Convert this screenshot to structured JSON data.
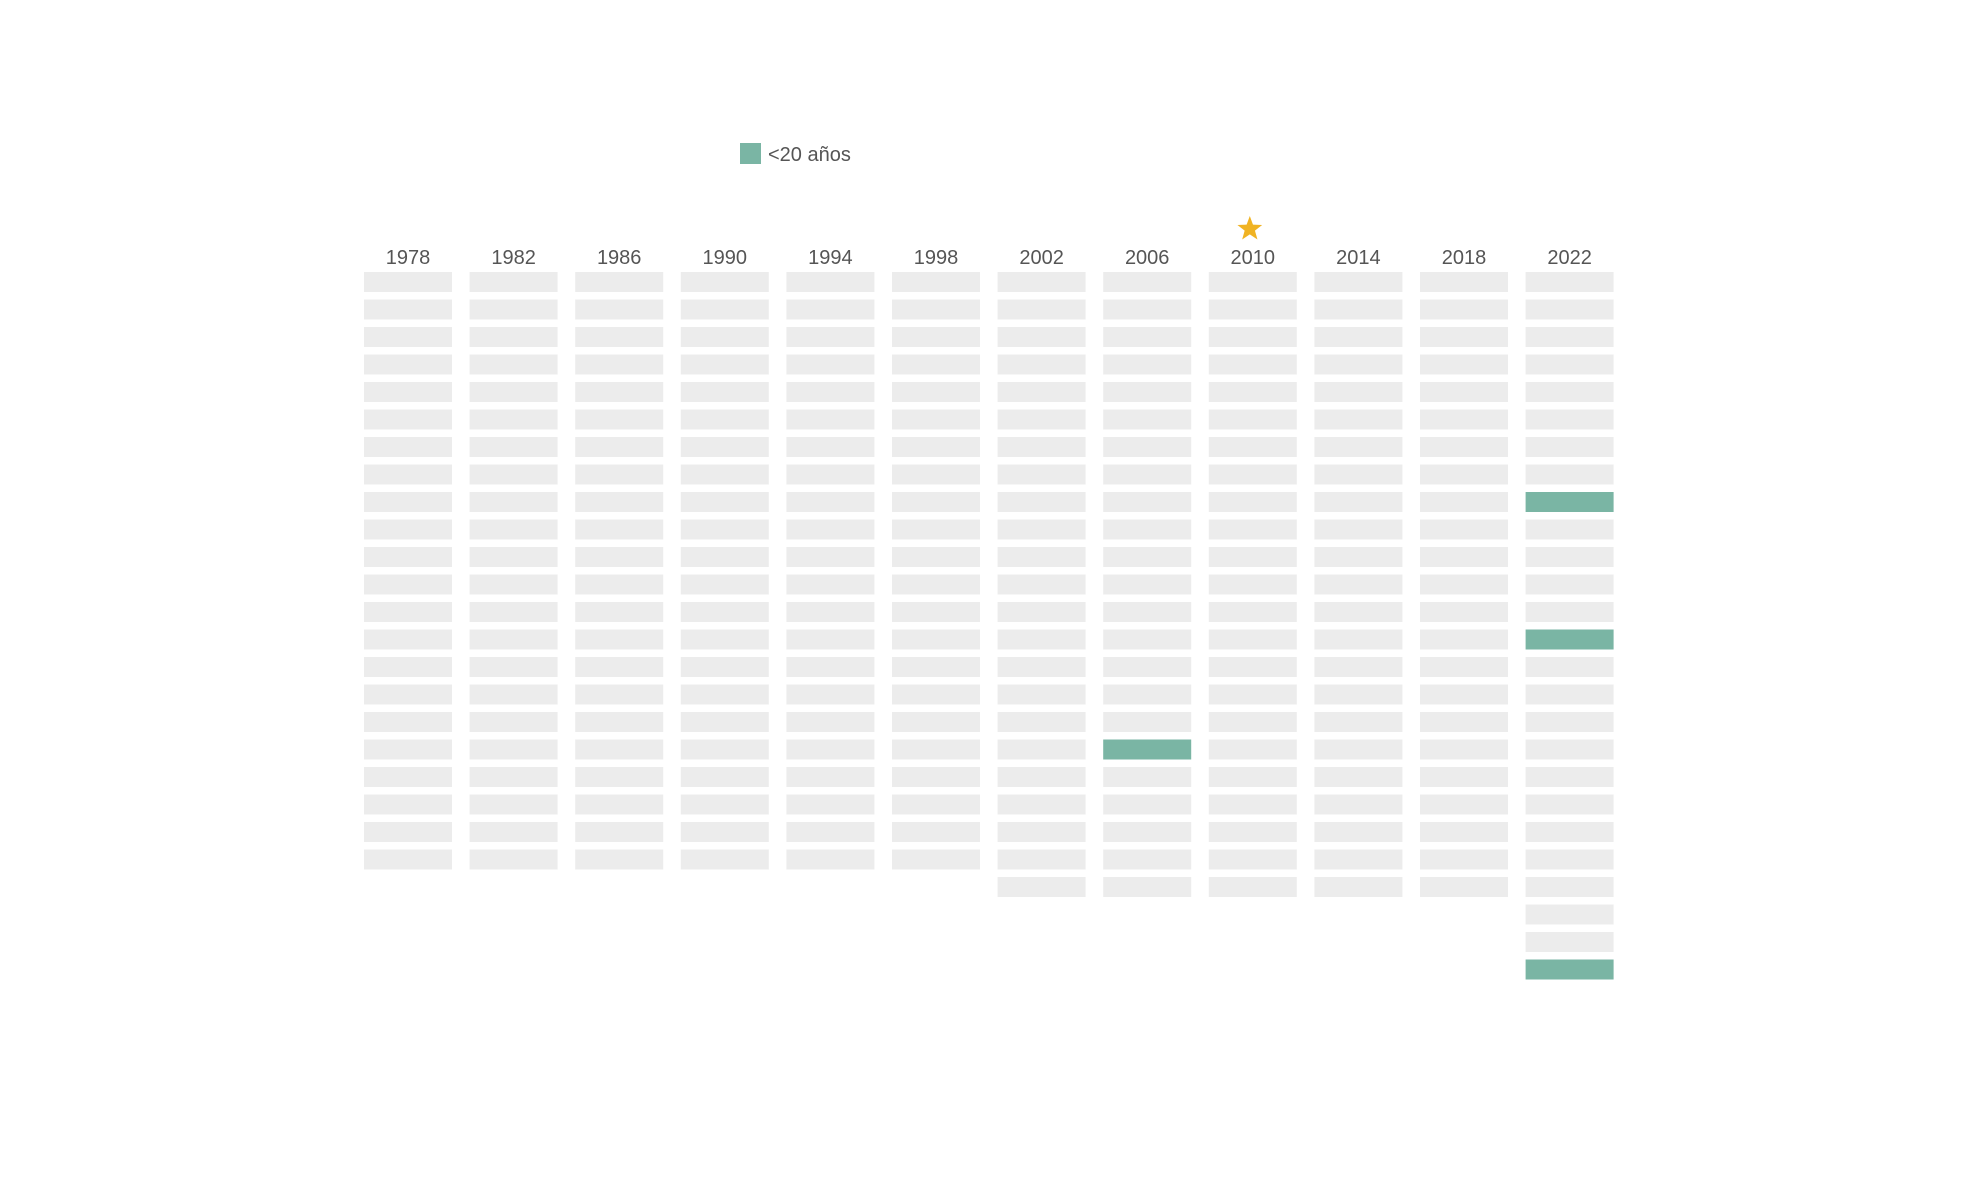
{
  "legend": {
    "label": "<20 años",
    "color": "#7ab5a4"
  },
  "colors": {
    "player": "#ececec",
    "young": "#7ab5a4",
    "star": "#f0b323"
  },
  "chart_data": {
    "type": "waffle",
    "legend": [
      {
        "name": "<20 años",
        "color": "#7ab5a4"
      }
    ],
    "highlight_year": "2010",
    "highlight_icon": "star-icon",
    "columns": [
      {
        "year": "1978",
        "players": 22,
        "young": []
      },
      {
        "year": "1982",
        "players": 22,
        "young": []
      },
      {
        "year": "1986",
        "players": 22,
        "young": []
      },
      {
        "year": "1990",
        "players": 22,
        "young": []
      },
      {
        "year": "1994",
        "players": 22,
        "young": []
      },
      {
        "year": "1998",
        "players": 22,
        "young": []
      },
      {
        "year": "2002",
        "players": 23,
        "young": []
      },
      {
        "year": "2006",
        "players": 23,
        "young": [
          18
        ]
      },
      {
        "year": "2010",
        "players": 23,
        "young": []
      },
      {
        "year": "2014",
        "players": 23,
        "young": []
      },
      {
        "year": "2018",
        "players": 23,
        "young": []
      },
      {
        "year": "2022",
        "players": 26,
        "young": [
          9,
          14,
          26
        ]
      }
    ]
  }
}
